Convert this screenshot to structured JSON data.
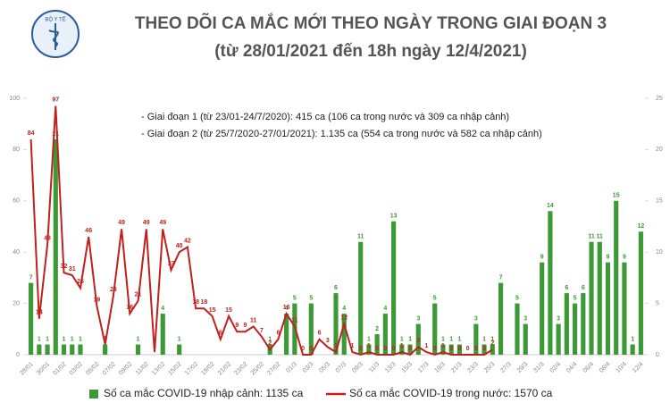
{
  "chart_data": {
    "type": "bar_line",
    "logo_text": "BỘ Y TẾ",
    "title": "THEO DÕI CA MẮC MỚI THEO NGÀY TRONG GIAI ĐOẠN 3",
    "subtitle": "(từ 28/01/2021 đến 18h ngày 12/4/2021)",
    "annotations": [
      "- Giai đoạn 1 (từ 23/01-24/7/2020): 415 ca (106 ca trong nước và 309 ca nhập cảnh)",
      "- Giai đoạn 2 (từ 25/7/2020-27/01/2021): 1.135 ca (554 ca trong nước và 582 ca nhập cảnh)"
    ],
    "categories": [
      "28/01",
      null,
      "30/01",
      null,
      "01/02",
      null,
      "03/02",
      null,
      "05/02",
      null,
      "07/02",
      null,
      "09/02",
      null,
      "11/02",
      null,
      "13/02",
      null,
      "15/02",
      null,
      "17/02",
      null,
      "19/02",
      null,
      "21/02",
      null,
      "23/02",
      null,
      "25/02",
      null,
      "27/02",
      null,
      "01/3",
      null,
      "03/3",
      null,
      "05/3",
      null,
      "07/3",
      null,
      "09/3",
      null,
      "11/3",
      null,
      "13/3",
      null,
      "15/3",
      null,
      "17/3",
      null,
      "19/3",
      null,
      "21/3",
      null,
      "23/3",
      null,
      "25/3",
      null,
      "27/3",
      null,
      "29/3",
      null,
      "31/3",
      null,
      "02/4",
      null,
      "04/4",
      null,
      "06/4",
      null,
      "08/4",
      null,
      "10/4",
      null,
      "12/4"
    ],
    "series": [
      {
        "name": "Số ca mắc COVID-19 nhập cảnh: 1135 ca",
        "kind": "bar",
        "axis": "y2",
        "color": "#3c9a36",
        "values": [
          7,
          1,
          1,
          21,
          1,
          1,
          1,
          0,
          0,
          1,
          0,
          0,
          0,
          1,
          0,
          0,
          4,
          0,
          1,
          0,
          0,
          0,
          0,
          0,
          0,
          0,
          0,
          0,
          0,
          1,
          0,
          4,
          5,
          0,
          5,
          0,
          0,
          6,
          4,
          0,
          11,
          1,
          2,
          4,
          13,
          1,
          1,
          3,
          0,
          5,
          1,
          1,
          1,
          0,
          3,
          1,
          1,
          7,
          0,
          5,
          3,
          0,
          9,
          14,
          3,
          6,
          5,
          6,
          11,
          11,
          9,
          15,
          9,
          1,
          12
        ]
      },
      {
        "name": "Số ca mắc COVID-19 trong nước: 1570 ca",
        "kind": "line",
        "axis": "y",
        "color": "#c0201e",
        "values": [
          84,
          14,
          43,
          97,
          32,
          31,
          26,
          46,
          19,
          4,
          23,
          49,
          16,
          21,
          49,
          1,
          49,
          33,
          40,
          42,
          18,
          18,
          15,
          6,
          15,
          9,
          9,
          11,
          7,
          2,
          6,
          16,
          11,
          0,
          0,
          6,
          3,
          1,
          12,
          1,
          0,
          1,
          0,
          0,
          0,
          1,
          0,
          3,
          1,
          0,
          1,
          0,
          0,
          0,
          0,
          0,
          2,
          null,
          null,
          null,
          null,
          null,
          null,
          null,
          null,
          null,
          null,
          null,
          null,
          null,
          null,
          null,
          null,
          null,
          null
        ]
      }
    ],
    "ylim": [
      0,
      100
    ],
    "yticks": [
      0,
      20,
      40,
      60,
      80,
      100
    ],
    "y2lim": [
      0,
      25
    ],
    "y2ticks": [
      0,
      5,
      10,
      15,
      20,
      25
    ]
  }
}
